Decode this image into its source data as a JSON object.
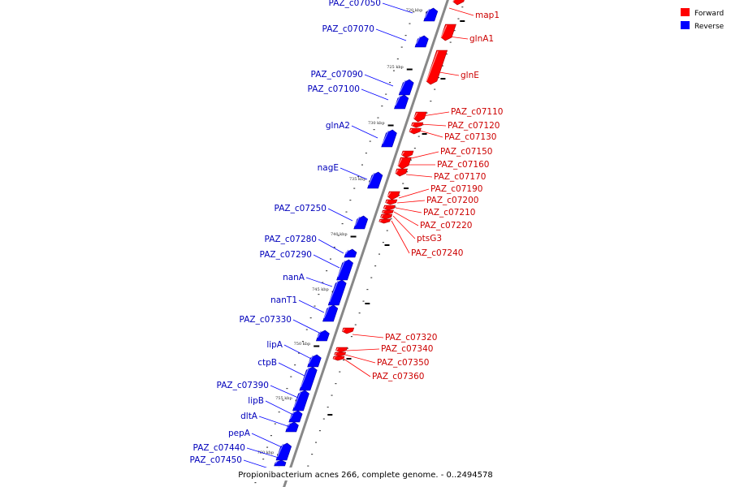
{
  "caption": "Propionibacterium acnes 266, complete genome. - 0..2494578",
  "legend": [
    {
      "label": "Forward",
      "color": "#ff0000"
    },
    {
      "label": "Reverse",
      "color": "#0000ff"
    }
  ],
  "colors": {
    "forward": "#ff0000",
    "reverse": "#0000ff",
    "backbone": "#888888"
  },
  "ticks": [
    {
      "label": "720 kbp"
    },
    {
      "label": "725 kbp"
    },
    {
      "label": "730 kbp"
    },
    {
      "label": "735 kbp"
    },
    {
      "label": "740 kbp"
    },
    {
      "label": "745 kbp"
    },
    {
      "label": "750 kbp"
    },
    {
      "label": "755 kbp"
    },
    {
      "label": "760 kbp"
    }
  ],
  "genes": [
    {
      "name": "map1",
      "strand": "forward"
    },
    {
      "name": "glnA1",
      "strand": "forward"
    },
    {
      "name": "glnE",
      "strand": "forward"
    },
    {
      "name": "PAZ_c07110",
      "strand": "forward"
    },
    {
      "name": "PAZ_c07120",
      "strand": "forward"
    },
    {
      "name": "PAZ_c07130",
      "strand": "forward"
    },
    {
      "name": "PAZ_c07150",
      "strand": "forward"
    },
    {
      "name": "PAZ_c07160",
      "strand": "forward"
    },
    {
      "name": "PAZ_c07170",
      "strand": "forward"
    },
    {
      "name": "PAZ_c07190",
      "strand": "forward"
    },
    {
      "name": "PAZ_c07200",
      "strand": "forward"
    },
    {
      "name": "PAZ_c07210",
      "strand": "forward"
    },
    {
      "name": "PAZ_c07220",
      "strand": "forward"
    },
    {
      "name": "ptsG3",
      "strand": "forward"
    },
    {
      "name": "PAZ_c07240",
      "strand": "forward"
    },
    {
      "name": "PAZ_c07320",
      "strand": "forward"
    },
    {
      "name": "PAZ_c07340",
      "strand": "forward"
    },
    {
      "name": "PAZ_c07350",
      "strand": "forward"
    },
    {
      "name": "PAZ_c07360",
      "strand": "forward"
    },
    {
      "name": "PAZ_c07050",
      "strand": "reverse"
    },
    {
      "name": "PAZ_c07070",
      "strand": "reverse"
    },
    {
      "name": "PAZ_c07090",
      "strand": "reverse"
    },
    {
      "name": "PAZ_c07100",
      "strand": "reverse"
    },
    {
      "name": "glnA2",
      "strand": "reverse"
    },
    {
      "name": "nagE",
      "strand": "reverse"
    },
    {
      "name": "PAZ_c07250",
      "strand": "reverse"
    },
    {
      "name": "PAZ_c07280",
      "strand": "reverse"
    },
    {
      "name": "PAZ_c07290",
      "strand": "reverse"
    },
    {
      "name": "nanA",
      "strand": "reverse"
    },
    {
      "name": "nanT1",
      "strand": "reverse"
    },
    {
      "name": "PAZ_c07330",
      "strand": "reverse"
    },
    {
      "name": "lipA",
      "strand": "reverse"
    },
    {
      "name": "ctpB",
      "strand": "reverse"
    },
    {
      "name": "PAZ_c07390",
      "strand": "reverse"
    },
    {
      "name": "lipB",
      "strand": "reverse"
    },
    {
      "name": "dltA",
      "strand": "reverse"
    },
    {
      "name": "pepA",
      "strand": "reverse"
    },
    {
      "name": "PAZ_c07440",
      "strand": "reverse"
    },
    {
      "name": "PAZ_c07450",
      "strand": "reverse"
    }
  ]
}
